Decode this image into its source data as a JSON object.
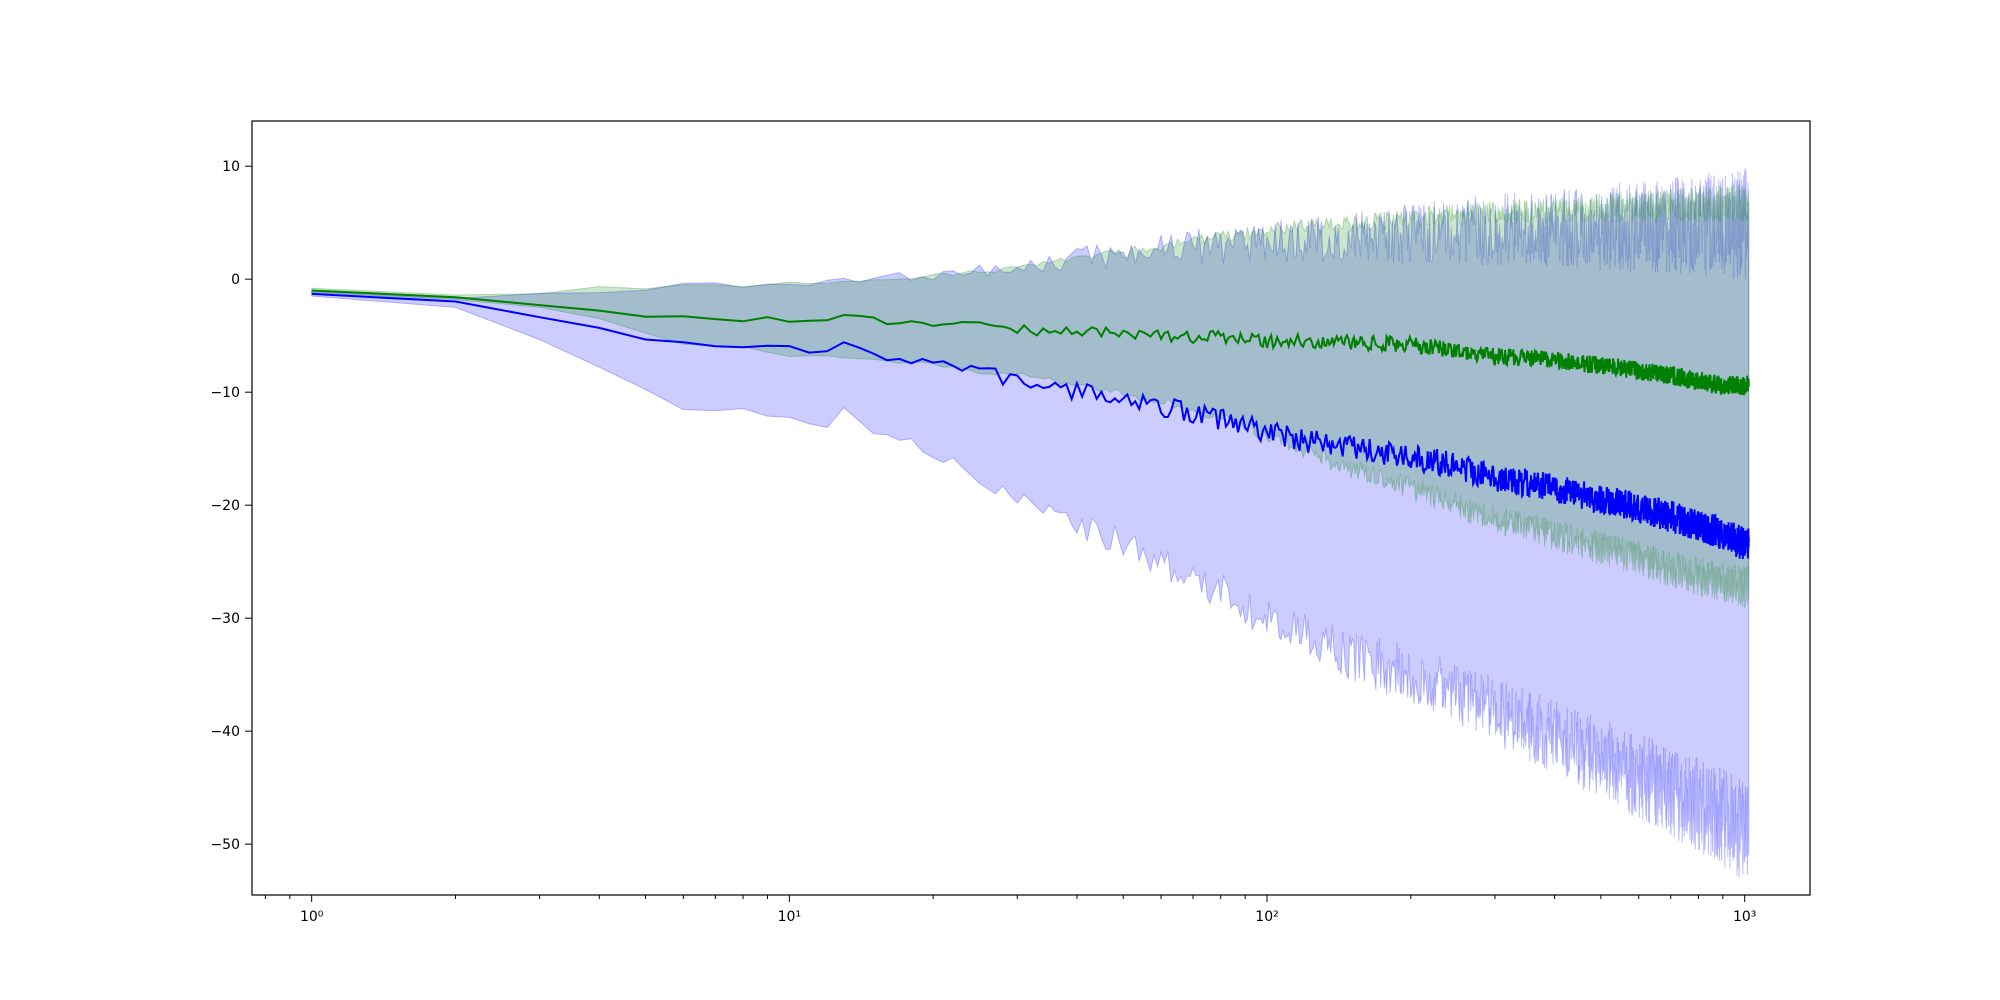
{
  "chart_data": {
    "type": "line",
    "title": "",
    "xlabel": "",
    "ylabel": "",
    "xscale": "log",
    "xlim": [
      0.75,
      1370
    ],
    "ylim": [
      -54.5,
      14
    ],
    "grid": false,
    "legend": "none",
    "x_ticks": [
      {
        "value": 1,
        "label": "10⁰"
      },
      {
        "value": 10,
        "label": "10¹"
      },
      {
        "value": 100,
        "label": "10²"
      },
      {
        "value": 1000,
        "label": "10³"
      }
    ],
    "y_ticks": [
      {
        "value": 10,
        "label": "10"
      },
      {
        "value": 0,
        "label": "0"
      },
      {
        "value": -10,
        "label": "−10"
      },
      {
        "value": -20,
        "label": "−20"
      },
      {
        "value": -30,
        "label": "−30"
      },
      {
        "value": -40,
        "label": "−40"
      },
      {
        "value": -50,
        "label": "−50"
      }
    ],
    "series": [
      {
        "color": "#0000ff",
        "band_opacity": 0.2,
        "mean": [
          [
            1,
            -1.3
          ],
          [
            2,
            -2.1
          ],
          [
            3,
            -3.3
          ],
          [
            4,
            -4.6
          ],
          [
            5,
            -5.3
          ],
          [
            6,
            -5.8
          ],
          [
            8,
            -6.0
          ],
          [
            10,
            -6.4
          ],
          [
            12,
            -6.5
          ],
          [
            13,
            -5.7
          ],
          [
            15,
            -6.6
          ],
          [
            20,
            -7.3
          ],
          [
            25,
            -8.3
          ],
          [
            30,
            -8.9
          ],
          [
            40,
            -10
          ],
          [
            50,
            -10.4
          ],
          [
            60,
            -11.3
          ],
          [
            70,
            -11.8
          ],
          [
            80,
            -12.4
          ],
          [
            100,
            -13.5
          ],
          [
            120,
            -14.3
          ],
          [
            150,
            -15
          ],
          [
            200,
            -15.8
          ],
          [
            250,
            -16.5
          ],
          [
            300,
            -17.5
          ],
          [
            400,
            -18.5
          ],
          [
            500,
            -19.5
          ],
          [
            600,
            -20.3
          ],
          [
            700,
            -21
          ],
          [
            800,
            -21.8
          ],
          [
            900,
            -22.5
          ],
          [
            1000,
            -23.5
          ],
          [
            1020,
            -23.5
          ]
        ],
        "upper": [
          [
            1,
            -1.1
          ],
          [
            2,
            -1.7
          ],
          [
            3,
            -1.2
          ],
          [
            4,
            -1.3
          ],
          [
            5,
            -1.0
          ],
          [
            6,
            -0.5
          ],
          [
            8,
            -0.5
          ],
          [
            10,
            -0.2
          ],
          [
            12,
            -0.3
          ],
          [
            15,
            -0.1
          ],
          [
            20,
            0.3
          ],
          [
            25,
            0.6
          ],
          [
            30,
            1.2
          ],
          [
            40,
            1.8
          ],
          [
            50,
            2.3
          ],
          [
            60,
            2.6
          ],
          [
            70,
            2.9
          ],
          [
            80,
            3.1
          ],
          [
            100,
            3.4
          ],
          [
            120,
            3.6
          ],
          [
            150,
            3.8
          ],
          [
            200,
            4.0
          ],
          [
            250,
            4.2
          ],
          [
            300,
            4.4
          ],
          [
            400,
            4.5
          ],
          [
            500,
            4.6
          ],
          [
            600,
            4.7
          ],
          [
            700,
            4.7
          ],
          [
            800,
            4.8
          ],
          [
            900,
            4.8
          ],
          [
            1000,
            4.9
          ],
          [
            1020,
            4.9
          ]
        ],
        "lower": [
          [
            1,
            -1.5
          ],
          [
            2,
            -2.5
          ],
          [
            3,
            -5.3
          ],
          [
            4,
            -7.8
          ],
          [
            5,
            -9.8
          ],
          [
            6,
            -11.5
          ],
          [
            8,
            -11.6
          ],
          [
            10,
            -12.2
          ],
          [
            12,
            -12.8
          ],
          [
            13,
            -11.2
          ],
          [
            15,
            -13.5
          ],
          [
            20,
            -15.2
          ],
          [
            25,
            -17.8
          ],
          [
            30,
            -19.5
          ],
          [
            40,
            -21.8
          ],
          [
            50,
            -23.3
          ],
          [
            60,
            -25
          ],
          [
            70,
            -26.3
          ],
          [
            80,
            -27.8
          ],
          [
            100,
            -30
          ],
          [
            120,
            -31.6
          ],
          [
            150,
            -33.3
          ],
          [
            200,
            -35
          ],
          [
            250,
            -36.6
          ],
          [
            300,
            -38.3
          ],
          [
            400,
            -40.5
          ],
          [
            500,
            -42.5
          ],
          [
            600,
            -44
          ],
          [
            700,
            -45.3
          ],
          [
            800,
            -46.5
          ],
          [
            900,
            -47.6
          ],
          [
            1000,
            -49
          ],
          [
            1020,
            -49.5
          ]
        ],
        "noise": 1
      },
      {
        "color": "#008000",
        "band_opacity": 0.2,
        "mean": [
          [
            1,
            -1.0
          ],
          [
            2,
            -1.6
          ],
          [
            3,
            -2.2
          ],
          [
            4,
            -2.8
          ],
          [
            5,
            -3.2
          ],
          [
            6,
            -3.5
          ],
          [
            8,
            -3.5
          ],
          [
            9,
            -3.2
          ],
          [
            10,
            -3.7
          ],
          [
            12,
            -3.6
          ],
          [
            13,
            -3.3
          ],
          [
            15,
            -3.6
          ],
          [
            20,
            -3.9
          ],
          [
            25,
            -4.2
          ],
          [
            30,
            -4.5
          ],
          [
            40,
            -4.6
          ],
          [
            50,
            -4.8
          ],
          [
            60,
            -5.0
          ],
          [
            70,
            -5.1
          ],
          [
            80,
            -5.1
          ],
          [
            100,
            -5.5
          ],
          [
            120,
            -5.5
          ],
          [
            150,
            -5.6
          ],
          [
            200,
            -5.8
          ],
          [
            250,
            -6.3
          ],
          [
            300,
            -6.8
          ],
          [
            400,
            -7.2
          ],
          [
            500,
            -7.6
          ],
          [
            600,
            -8.1
          ],
          [
            700,
            -8.5
          ],
          [
            800,
            -9.0
          ],
          [
            900,
            -9.5
          ],
          [
            1000,
            -9.4
          ],
          [
            1020,
            -9.4
          ]
        ],
        "upper": [
          [
            1,
            -0.8
          ],
          [
            2,
            -1.4
          ],
          [
            3,
            -1.3
          ],
          [
            4,
            -0.7
          ],
          [
            5,
            -0.9
          ],
          [
            6,
            -0.5
          ],
          [
            8,
            -0.6
          ],
          [
            10,
            -0.3
          ],
          [
            12,
            -0.3
          ],
          [
            15,
            -0.1
          ],
          [
            20,
            0.3
          ],
          [
            25,
            0.6
          ],
          [
            30,
            1.2
          ],
          [
            40,
            1.8
          ],
          [
            50,
            2.3
          ],
          [
            60,
            2.8
          ],
          [
            70,
            3.3
          ],
          [
            80,
            3.8
          ],
          [
            100,
            4.3
          ],
          [
            120,
            4.7
          ],
          [
            150,
            5.0
          ],
          [
            200,
            5.4
          ],
          [
            250,
            5.7
          ],
          [
            300,
            5.9
          ],
          [
            400,
            6.1
          ],
          [
            500,
            6.3
          ],
          [
            600,
            6.4
          ],
          [
            700,
            6.5
          ],
          [
            800,
            6.6
          ],
          [
            900,
            6.7
          ],
          [
            1000,
            6.8
          ],
          [
            1020,
            6.8
          ]
        ],
        "lower": [
          [
            1,
            -1.2
          ],
          [
            2,
            -1.8
          ],
          [
            3,
            -2.5
          ],
          [
            4,
            -3.5
          ],
          [
            5,
            -4.8
          ],
          [
            6,
            -5.8
          ],
          [
            8,
            -6.0
          ],
          [
            10,
            -6.8
          ],
          [
            12,
            -6.8
          ],
          [
            15,
            -7.2
          ],
          [
            20,
            -7.5
          ],
          [
            25,
            -8.2
          ],
          [
            30,
            -8.5
          ],
          [
            40,
            -9.3
          ],
          [
            50,
            -10.2
          ],
          [
            60,
            -10.8
          ],
          [
            70,
            -11.5
          ],
          [
            80,
            -12.3
          ],
          [
            100,
            -13.8
          ],
          [
            120,
            -15.2
          ],
          [
            150,
            -16.8
          ],
          [
            200,
            -18.5
          ],
          [
            250,
            -20
          ],
          [
            300,
            -21.2
          ],
          [
            400,
            -22.6
          ],
          [
            500,
            -23.8
          ],
          [
            600,
            -24.8
          ],
          [
            700,
            -25.6
          ],
          [
            800,
            -26.3
          ],
          [
            900,
            -26.8
          ],
          [
            1000,
            -27.2
          ],
          [
            1020,
            -27.2
          ]
        ],
        "noise": 0.6
      }
    ]
  }
}
